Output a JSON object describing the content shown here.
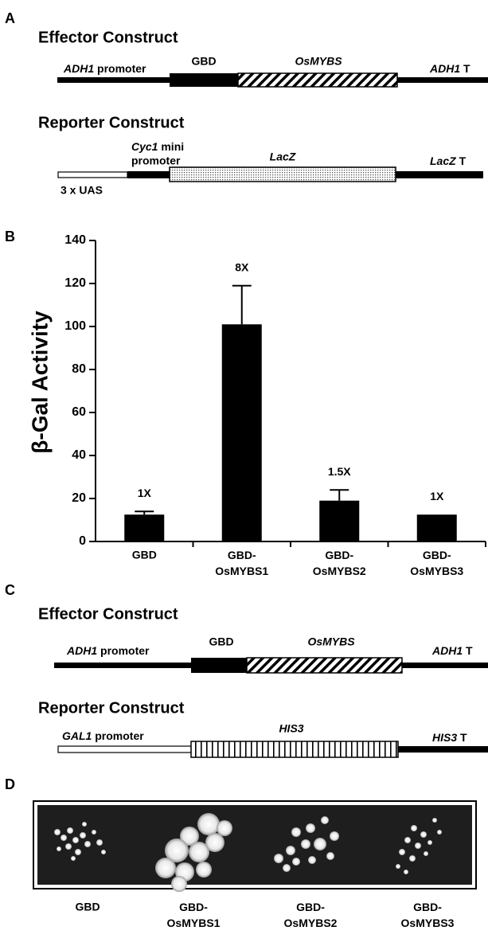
{
  "panel_a": {
    "label": "A",
    "effector": {
      "title": "Effector Construct",
      "promoter_italic": "ADH1",
      "promoter": "promoter",
      "fusion": "GBD",
      "gene": "OsMYBS",
      "terminator_italic": "ADH1",
      "terminator": "T"
    },
    "reporter": {
      "title": "Reporter Construct",
      "promoter_italic": "Cyc1",
      "promoter_line1": "mini",
      "promoter_line2": "promoter",
      "gene": "LacZ",
      "terminator_italic": "LacZ",
      "terminator": "T",
      "uas": "3 x UAS"
    }
  },
  "chart_data": {
    "type": "bar",
    "label": "B",
    "y_label": "β-Gal Activity",
    "categories": [
      "GBD",
      "GBD-OsMYBS1",
      "GBD-OsMYBS2",
      "GBD-OsMYBS3"
    ],
    "values": [
      12.5,
      101,
      19,
      12.5
    ],
    "errors": [
      1.5,
      18,
      5,
      null
    ],
    "annotations": [
      "1X",
      "8X",
      "1.5X",
      "1X"
    ],
    "color": "#000000",
    "ylim": [
      0,
      140
    ],
    "yticks": [
      0,
      20,
      40,
      60,
      80,
      100,
      120,
      140
    ]
  },
  "panel_c": {
    "label": "C",
    "effector": {
      "title": "Effector Construct",
      "promoter_italic": "ADH1",
      "promoter": "promoter",
      "fusion": "GBD",
      "gene": "OsMYBS",
      "terminator_italic": "ADH1",
      "terminator": "T"
    },
    "reporter": {
      "title": "Reporter Construct",
      "promoter_italic": "GAL1",
      "promoter": "promoter",
      "gene": "HIS3",
      "terminator_italic": "HIS3",
      "terminator": "T"
    }
  },
  "panel_d": {
    "label": "D",
    "lanes": [
      "GBD",
      "GBD-OsMYBS1",
      "GBD-OsMYBS2",
      "GBD-OsMYBS3"
    ]
  }
}
